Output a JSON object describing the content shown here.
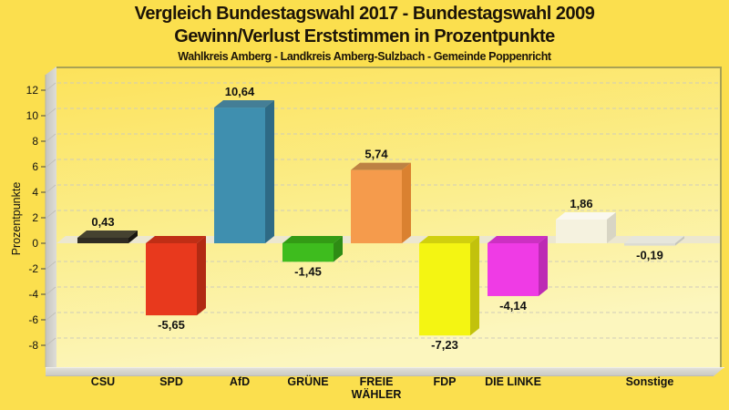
{
  "colors": {
    "background": "#FBDF4E",
    "title_text": "#1C1408",
    "label_text": "#111111",
    "plot_bg_top": "#FCE25A",
    "plot_bg_mid": "#FBEE8E",
    "plot_bg_bottom": "#FCF6BE",
    "plot_border": "#A9A254",
    "grid": "#CFCCBA",
    "wall_light": "#DEDDD7",
    "wall_dark": "#C6C5BF",
    "wall_edge": "#B4B3AD",
    "floor_light": "#E2E1DB",
    "floor_dark": "#C9C8C1",
    "floor_highlight": "#EFEEE9",
    "zero_band": "#ECE7D0",
    "tick": "#444444"
  },
  "chart_data": {
    "type": "bar",
    "style": "3d-bars",
    "title": "Vergleich Bundestagswahl 2017 - Bundestagswahl 2009",
    "subtitle": "Gewinn/Verlust Erststimmen in Prozentpunkte",
    "region_line": "Wahlkreis Amberg - Landkreis Amberg-Sulzbach - Gemeinde Poppenricht",
    "ylabel": "Prozentpunkte",
    "xlabel": "",
    "ylim": [
      -9.5,
      13.8
    ],
    "yticks": [
      12,
      10,
      8,
      6,
      4,
      2,
      0,
      -2,
      -4,
      -6,
      -8
    ],
    "grid": "dashed-horizontal",
    "legend": "none",
    "categories": [
      "CSU",
      "SPD",
      "AfD",
      "GRÜNE",
      "FREIE WÄHLER",
      "FDP",
      "DIE LINKE",
      "",
      "Sonstige"
    ],
    "values": [
      0.43,
      -5.65,
      10.64,
      -1.45,
      5.74,
      -7.23,
      -4.14,
      1.86,
      -0.19
    ],
    "bars": [
      {
        "category_lines": [
          "CSU"
        ],
        "value": 0.43,
        "value_label": "0,43",
        "front": "#2F2C23",
        "top": "#454230",
        "side": "#191711"
      },
      {
        "category_lines": [
          "SPD"
        ],
        "value": -5.65,
        "value_label": "-5,65",
        "front": "#E8391D",
        "top": "#C02E15",
        "side": "#B22A13"
      },
      {
        "category_lines": [
          "AfD"
        ],
        "value": 10.64,
        "value_label": "10,64",
        "front": "#3F8FAF",
        "top": "#447E96",
        "side": "#2E6A85"
      },
      {
        "category_lines": [
          "GRÜNE"
        ],
        "value": -1.45,
        "value_label": "-1,45",
        "front": "#3EBC1E",
        "top": "#339B15",
        "side": "#2E8C14"
      },
      {
        "category_lines": [
          "FREIE",
          "WÄHLER"
        ],
        "value": 5.74,
        "value_label": "5,74",
        "front": "#F59B4C",
        "top": "#BD8243",
        "side": "#DA8130"
      },
      {
        "category_lines": [
          "FDP"
        ],
        "value": -7.23,
        "value_label": "-7,23",
        "front": "#F4F512",
        "top": "#D0D00E",
        "side": "#C2C20C"
      },
      {
        "category_lines": [
          "DIE LINKE"
        ],
        "value": -4.14,
        "value_label": "-4,14",
        "front": "#EF3BE5",
        "top": "#CC30C2",
        "side": "#BD2BB4"
      },
      {
        "category_lines": [],
        "value": 1.86,
        "value_label": "1,86",
        "front": "#F5F2DF",
        "top": "#FAF8EF",
        "side": "#D8D5C4"
      },
      {
        "category_lines": [
          "Sonstige"
        ],
        "value": -0.19,
        "value_label": "-0,19",
        "front": "#DCDCD2",
        "top": "#E6E6DC",
        "side": "#C6C6BC"
      }
    ]
  }
}
